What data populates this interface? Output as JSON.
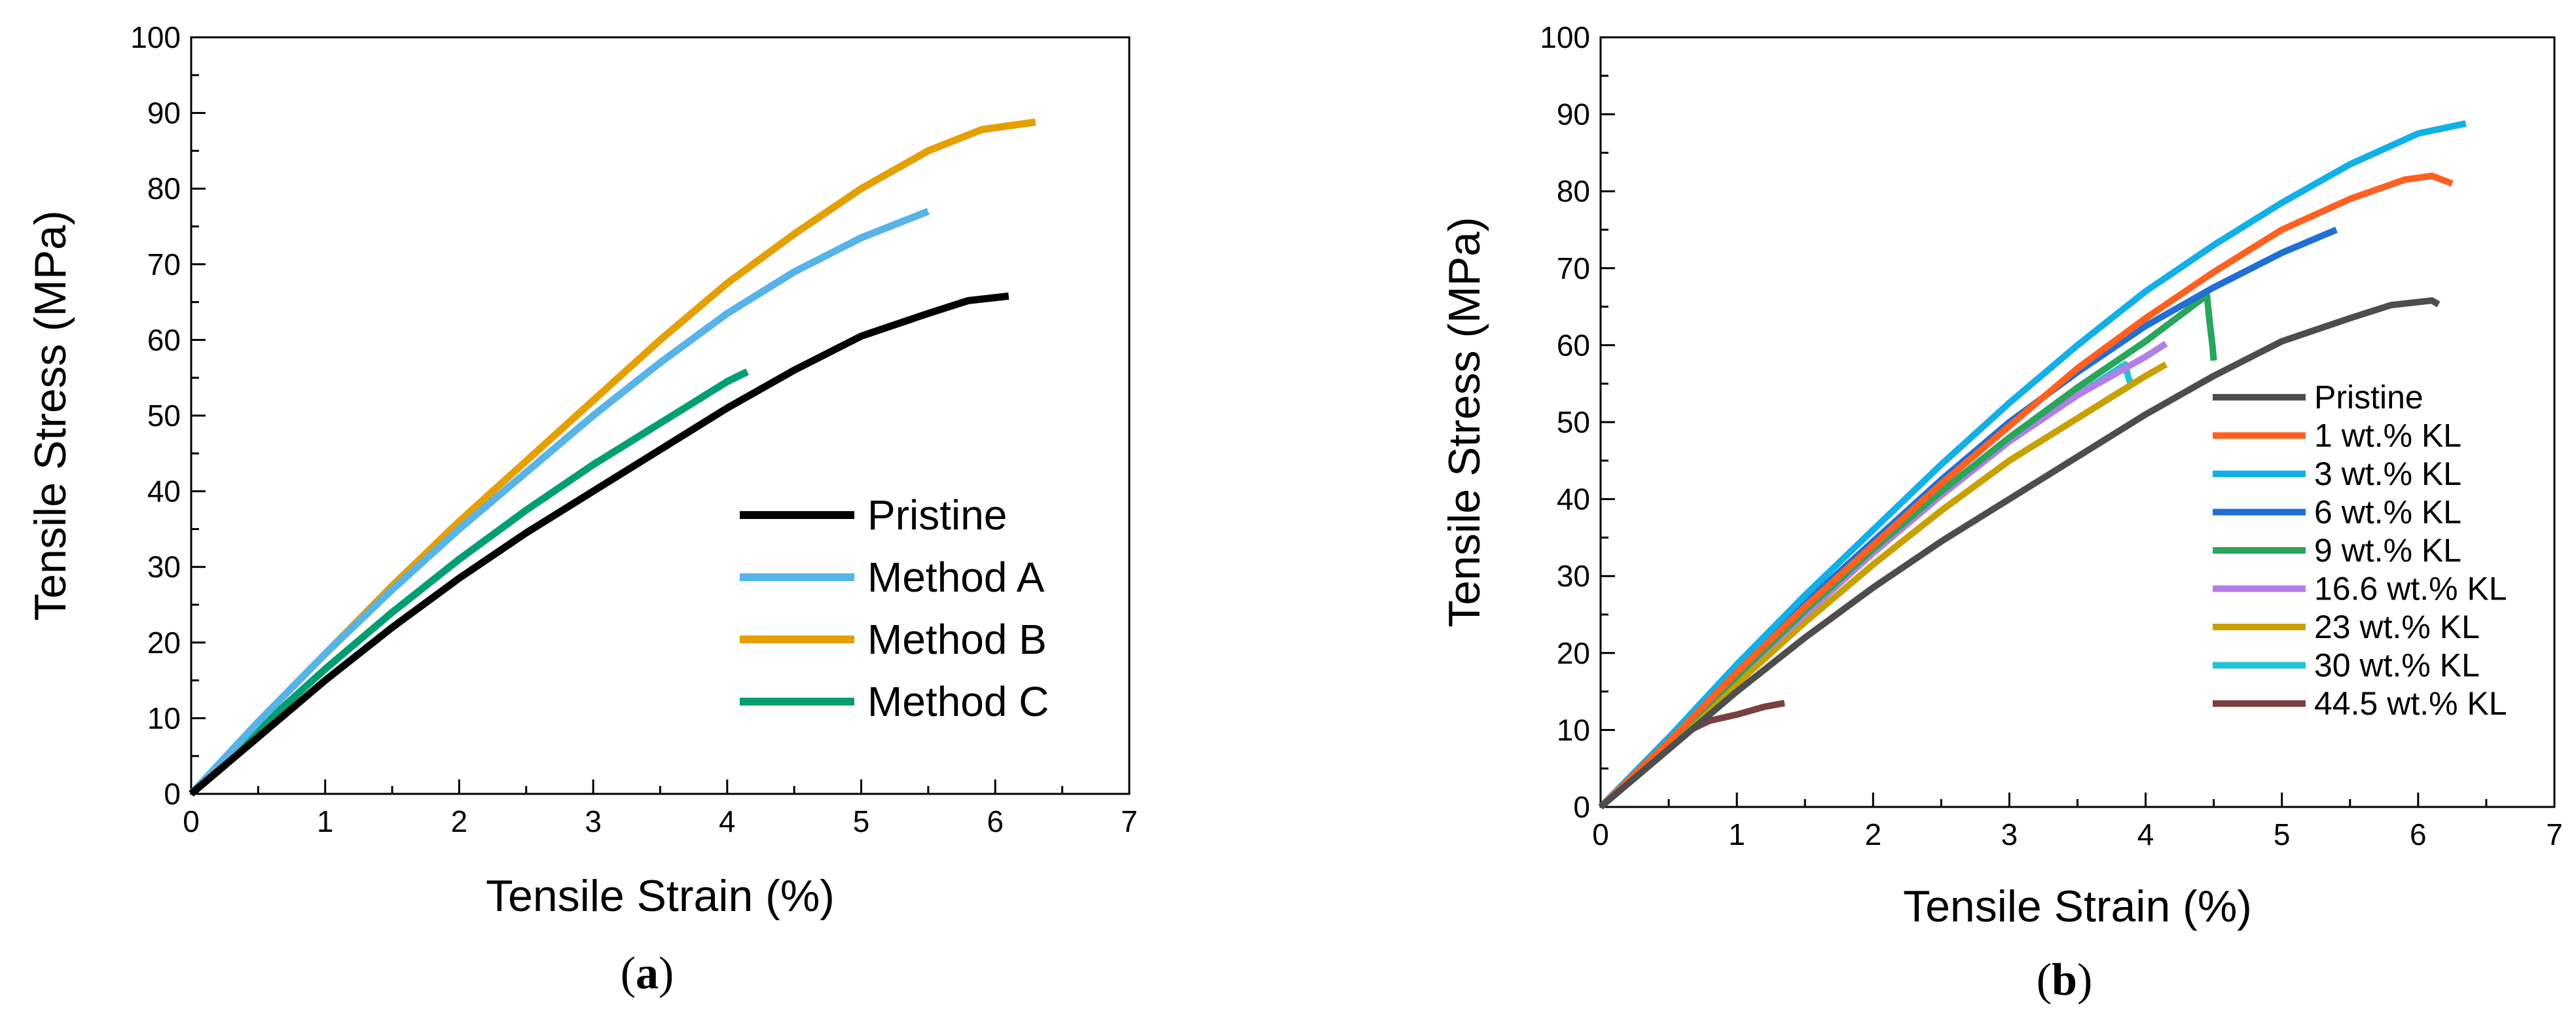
{
  "chart_data": [
    {
      "type": "line",
      "panel": "a",
      "panel_label": {
        "open": "(",
        "letter": "a",
        "close": ")"
      },
      "xlabel": "Tensile Strain (%)",
      "ylabel": "Tensile Stress (MPa)",
      "xlim": [
        0,
        7
      ],
      "ylim": [
        0,
        100
      ],
      "xticks": [
        0,
        1,
        2,
        3,
        4,
        5,
        6,
        7
      ],
      "yticks": [
        0,
        10,
        20,
        30,
        40,
        50,
        60,
        70,
        80,
        90,
        100
      ],
      "grid": false,
      "legend_position": "bottom-right",
      "series": [
        {
          "name": "Pristine",
          "color": "#000000",
          "points": [
            [
              0,
              0
            ],
            [
              0.5,
              7.5
            ],
            [
              1,
              15
            ],
            [
              1.5,
              22
            ],
            [
              2,
              28.5
            ],
            [
              2.5,
              34.5
            ],
            [
              3,
              40
            ],
            [
              3.5,
              45.5
            ],
            [
              4,
              51
            ],
            [
              4.5,
              56
            ],
            [
              5,
              60.5
            ],
            [
              5.5,
              63.5
            ],
            [
              5.8,
              65.2
            ],
            [
              6.1,
              65.8
            ]
          ]
        },
        {
          "name": "Method A",
          "color": "#56b4e9",
          "points": [
            [
              0,
              0
            ],
            [
              0.5,
              9.5
            ],
            [
              1,
              18.5
            ],
            [
              1.5,
              27
            ],
            [
              2,
              35
            ],
            [
              2.5,
              42.5
            ],
            [
              3,
              50
            ],
            [
              3.5,
              57
            ],
            [
              4,
              63.5
            ],
            [
              4.5,
              69
            ],
            [
              5,
              73.5
            ],
            [
              5.5,
              77
            ]
          ]
        },
        {
          "name": "Method B",
          "color": "#e69f00",
          "points": [
            [
              0,
              0
            ],
            [
              0.5,
              9.5
            ],
            [
              1,
              18.5
            ],
            [
              1.5,
              27.5
            ],
            [
              2,
              36
            ],
            [
              2.5,
              44
            ],
            [
              3,
              52
            ],
            [
              3.5,
              60
            ],
            [
              4,
              67.5
            ],
            [
              4.5,
              74
            ],
            [
              5,
              80
            ],
            [
              5.5,
              85
            ],
            [
              5.9,
              87.8
            ],
            [
              6.3,
              88.8
            ]
          ]
        },
        {
          "name": "Method C",
          "color": "#009e73",
          "points": [
            [
              0,
              0
            ],
            [
              0.5,
              8.5
            ],
            [
              1,
              16.5
            ],
            [
              1.5,
              24
            ],
            [
              2,
              31
            ],
            [
              2.5,
              37.5
            ],
            [
              3,
              43.5
            ],
            [
              3.5,
              49
            ],
            [
              4,
              54.5
            ],
            [
              4.15,
              55.8
            ]
          ]
        }
      ]
    },
    {
      "type": "line",
      "panel": "b",
      "panel_label": {
        "open": "(",
        "letter": "b",
        "close": ")"
      },
      "xlabel": "Tensile Strain (%)",
      "ylabel": "Tensile Stress (MPa)",
      "xlim": [
        0,
        7
      ],
      "ylim": [
        0,
        100
      ],
      "xticks": [
        0,
        1,
        2,
        3,
        4,
        5,
        6,
        7
      ],
      "yticks": [
        0,
        10,
        20,
        30,
        40,
        50,
        60,
        70,
        80,
        90,
        100
      ],
      "grid": false,
      "legend_position": "bottom-right",
      "series": [
        {
          "name": "Pristine",
          "color": "#4d4d4d",
          "points": [
            [
              0,
              0
            ],
            [
              0.5,
              7.5
            ],
            [
              1,
              15
            ],
            [
              1.5,
              22
            ],
            [
              2,
              28.5
            ],
            [
              2.5,
              34.5
            ],
            [
              3,
              40
            ],
            [
              3.5,
              45.5
            ],
            [
              4,
              51
            ],
            [
              4.5,
              56
            ],
            [
              5,
              60.5
            ],
            [
              5.5,
              63.5
            ],
            [
              5.8,
              65.2
            ],
            [
              6.1,
              65.8
            ],
            [
              6.15,
              65.3
            ]
          ]
        },
        {
          "name": "1 wt.% KL",
          "color": "#ff6020",
          "points": [
            [
              0,
              0
            ],
            [
              0.5,
              8.5
            ],
            [
              1,
              17.5
            ],
            [
              1.5,
              26
            ],
            [
              2,
              34
            ],
            [
              2.5,
              42
            ],
            [
              3,
              49.5
            ],
            [
              3.5,
              57
            ],
            [
              4,
              63.5
            ],
            [
              4.5,
              69.5
            ],
            [
              5,
              75
            ],
            [
              5.5,
              79
            ],
            [
              5.9,
              81.5
            ],
            [
              6.1,
              82
            ],
            [
              6.25,
              81
            ]
          ]
        },
        {
          "name": "3 wt.% KL",
          "color": "#10b0e8",
          "points": [
            [
              0,
              0
            ],
            [
              0.5,
              9
            ],
            [
              1,
              18.5
            ],
            [
              1.5,
              27.5
            ],
            [
              2,
              36
            ],
            [
              2.5,
              44.5
            ],
            [
              3,
              52.5
            ],
            [
              3.5,
              60
            ],
            [
              4,
              67
            ],
            [
              4.5,
              73
            ],
            [
              5,
              78.5
            ],
            [
              5.5,
              83.5
            ],
            [
              6,
              87.5
            ],
            [
              6.35,
              88.8
            ]
          ]
        },
        {
          "name": "6 wt.% KL",
          "color": "#1f6fd6",
          "points": [
            [
              0,
              0
            ],
            [
              0.5,
              9
            ],
            [
              1,
              18
            ],
            [
              1.5,
              26.5
            ],
            [
              2,
              34.5
            ],
            [
              2.5,
              42.5
            ],
            [
              3,
              50
            ],
            [
              3.5,
              56.5
            ],
            [
              4,
              62.5
            ],
            [
              4.5,
              67.5
            ],
            [
              5,
              72
            ],
            [
              5.4,
              75
            ]
          ]
        },
        {
          "name": "9 wt.% KL",
          "color": "#2aa55c",
          "points": [
            [
              0,
              0
            ],
            [
              0.5,
              8.5
            ],
            [
              1,
              17
            ],
            [
              1.5,
              25.5
            ],
            [
              2,
              33.5
            ],
            [
              2.5,
              41
            ],
            [
              3,
              48
            ],
            [
              3.5,
              54.5
            ],
            [
              4,
              60.5
            ],
            [
              4.45,
              66.5
            ],
            [
              4.47,
              63
            ],
            [
              4.49,
              60
            ],
            [
              4.5,
              58
            ]
          ]
        },
        {
          "name": "16.6 wt.% KL",
          "color": "#b47ee8",
          "points": [
            [
              0,
              0
            ],
            [
              0.5,
              8.5
            ],
            [
              1,
              17
            ],
            [
              1.5,
              25
            ],
            [
              2,
              33
            ],
            [
              2.5,
              40.5
            ],
            [
              3,
              47.5
            ],
            [
              3.5,
              53.5
            ],
            [
              4,
              58.5
            ],
            [
              4.15,
              60.2
            ]
          ]
        },
        {
          "name": "23 wt.% KL",
          "color": "#c8a000",
          "points": [
            [
              0,
              0
            ],
            [
              0.5,
              8
            ],
            [
              1,
              16
            ],
            [
              1.5,
              24
            ],
            [
              2,
              31.5
            ],
            [
              2.5,
              38.5
            ],
            [
              3,
              45
            ],
            [
              3.5,
              50.5
            ],
            [
              4,
              56
            ],
            [
              4.15,
              57.5
            ]
          ]
        },
        {
          "name": "30 wt.% KL",
          "color": "#22c3d3",
          "points": [
            [
              0,
              0
            ],
            [
              0.5,
              8.5
            ],
            [
              1,
              17
            ],
            [
              1.5,
              25
            ],
            [
              2,
              33
            ],
            [
              2.5,
              40.5
            ],
            [
              3,
              47.5
            ],
            [
              3.5,
              53.5
            ],
            [
              3.85,
              57.5
            ],
            [
              3.87,
              56
            ],
            [
              3.9,
              54.5
            ]
          ]
        },
        {
          "name": "44.5 wt.% KL",
          "color": "#7a4040",
          "points": [
            [
              0,
              0
            ],
            [
              0.3,
              5
            ],
            [
              0.6,
              9.5
            ],
            [
              0.8,
              11.2
            ],
            [
              1,
              12
            ],
            [
              1.2,
              13
            ],
            [
              1.35,
              13.5
            ]
          ]
        }
      ]
    }
  ]
}
